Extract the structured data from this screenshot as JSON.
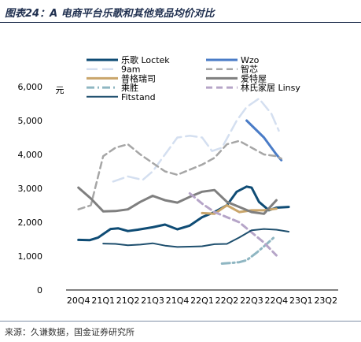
{
  "title": "图表24：A 电商平台乐歌和其他竞品均价对比",
  "source": "来源：久谦数据，国金证券研究所",
  "chart_data": {
    "type": "line",
    "unit": "元",
    "categories": [
      "20Q4",
      "21Q1",
      "21Q2",
      "21Q3",
      "21Q4",
      "22Q1",
      "22Q2",
      "22Q3",
      "22Q4",
      "23Q1",
      "23Q2"
    ],
    "yticks": [
      "0",
      "1,000",
      "2,000",
      "3,000",
      "4,000",
      "5,000",
      "6,000"
    ],
    "ylim": [
      0,
      6000
    ],
    "grid": false,
    "legend_position": "top",
    "series": [
      {
        "name": "乐歌 Loctek",
        "color": "#0f4c75",
        "dash": "solid",
        "width": 3,
        "points": [
          [
            0,
            1480
          ],
          [
            0.45,
            1470
          ],
          [
            0.8,
            1550
          ],
          [
            1.3,
            1800
          ],
          [
            1.6,
            1820
          ],
          [
            2,
            1740
          ],
          [
            2.4,
            1780
          ],
          [
            3,
            1850
          ],
          [
            3.5,
            1930
          ],
          [
            4,
            1790
          ],
          [
            4.5,
            1900
          ],
          [
            5,
            2150
          ],
          [
            5.5,
            2300
          ],
          [
            6,
            2500
          ],
          [
            6.4,
            2900
          ],
          [
            6.8,
            3050
          ],
          [
            7,
            3020
          ],
          [
            7.3,
            2600
          ],
          [
            7.7,
            2350
          ],
          [
            8,
            2430
          ],
          [
            8.5,
            2450
          ]
        ]
      },
      {
        "name": "Wzo",
        "color": "#4a7cc7",
        "dash": "solid",
        "width": 3,
        "points": [
          [
            6.8,
            5000
          ],
          [
            7.5,
            4500
          ],
          [
            8,
            4000
          ],
          [
            8.2,
            3830
          ]
        ]
      },
      {
        "name": "9am",
        "color": "#d4dff0",
        "dash": "long",
        "width": 2.5,
        "points": [
          [
            1.4,
            3200
          ],
          [
            2,
            3350
          ],
          [
            2.6,
            3250
          ],
          [
            3,
            3500
          ],
          [
            3.5,
            4000
          ],
          [
            4,
            4500
          ],
          [
            4.5,
            4550
          ],
          [
            5,
            4500
          ],
          [
            5.4,
            4100
          ],
          [
            5.8,
            4200
          ],
          [
            6.4,
            5000
          ],
          [
            6.8,
            5400
          ],
          [
            7.3,
            5650
          ],
          [
            7.8,
            5200
          ],
          [
            8.1,
            4700
          ]
        ]
      },
      {
        "name": "智芯",
        "color": "#a6a6a6",
        "dash": "dash",
        "width": 2.5,
        "points": [
          [
            0,
            2380
          ],
          [
            0.5,
            2500
          ],
          [
            1,
            3950
          ],
          [
            1.5,
            4200
          ],
          [
            2,
            4300
          ],
          [
            2.5,
            4000
          ],
          [
            3,
            3750
          ],
          [
            3.5,
            3500
          ],
          [
            4,
            3400
          ],
          [
            4.5,
            3550
          ],
          [
            5,
            3700
          ],
          [
            5.5,
            3900
          ],
          [
            6,
            4300
          ],
          [
            6.5,
            4400
          ],
          [
            7,
            4200
          ],
          [
            7.5,
            4000
          ],
          [
            8,
            3950
          ],
          [
            8.2,
            3880
          ]
        ]
      },
      {
        "name": "普格瑞司",
        "color": "#c9a56a",
        "dash": "solid",
        "width": 3,
        "points": [
          [
            5,
            2270
          ],
          [
            5.5,
            2250
          ],
          [
            6,
            2500
          ],
          [
            6.5,
            2300
          ],
          [
            7,
            2350
          ],
          [
            7.5,
            2350
          ],
          [
            8,
            2400
          ]
        ]
      },
      {
        "name": "爱特屋",
        "color": "#7f7f7f",
        "dash": "solid",
        "width": 3,
        "points": [
          [
            0,
            3020
          ],
          [
            0.5,
            2700
          ],
          [
            1,
            2320
          ],
          [
            1.5,
            2330
          ],
          [
            2,
            2380
          ],
          [
            2.5,
            2600
          ],
          [
            3,
            2780
          ],
          [
            3.5,
            2650
          ],
          [
            4,
            2580
          ],
          [
            4.5,
            2750
          ],
          [
            5,
            2900
          ],
          [
            5.5,
            2950
          ],
          [
            6,
            2600
          ],
          [
            6.5,
            2450
          ],
          [
            7,
            2300
          ],
          [
            7.5,
            2250
          ],
          [
            8,
            2650
          ]
        ]
      },
      {
        "name": "乘胜",
        "color": "#8fb6c2",
        "dash": "dashdot",
        "width": 3,
        "points": [
          [
            5.8,
            780
          ],
          [
            6.2,
            800
          ],
          [
            6.5,
            820
          ],
          [
            6.8,
            880
          ],
          [
            7.2,
            1100
          ],
          [
            7.6,
            1350
          ],
          [
            7.9,
            1550
          ]
        ]
      },
      {
        "name": "林氏家居 Linsy",
        "color": "#b6a5c8",
        "dash": "dash",
        "width": 3,
        "points": [
          [
            4.5,
            2850
          ],
          [
            5,
            2550
          ],
          [
            5.5,
            2300
          ],
          [
            6,
            2150
          ],
          [
            6.5,
            2000
          ],
          [
            7,
            1700
          ],
          [
            7.5,
            1400
          ],
          [
            8,
            1020
          ]
        ]
      },
      {
        "name": "Fitstand",
        "color": "#1e4f6e",
        "dash": "solid",
        "width": 2,
        "points": [
          [
            1,
            1370
          ],
          [
            1.5,
            1360
          ],
          [
            2,
            1320
          ],
          [
            2.5,
            1340
          ],
          [
            3,
            1380
          ],
          [
            3.5,
            1310
          ],
          [
            4,
            1270
          ],
          [
            4.5,
            1280
          ],
          [
            5,
            1290
          ],
          [
            5.5,
            1350
          ],
          [
            6,
            1360
          ],
          [
            6.5,
            1550
          ],
          [
            7,
            1760
          ],
          [
            7.5,
            1800
          ],
          [
            8,
            1780
          ],
          [
            8.5,
            1720
          ]
        ]
      }
    ]
  }
}
